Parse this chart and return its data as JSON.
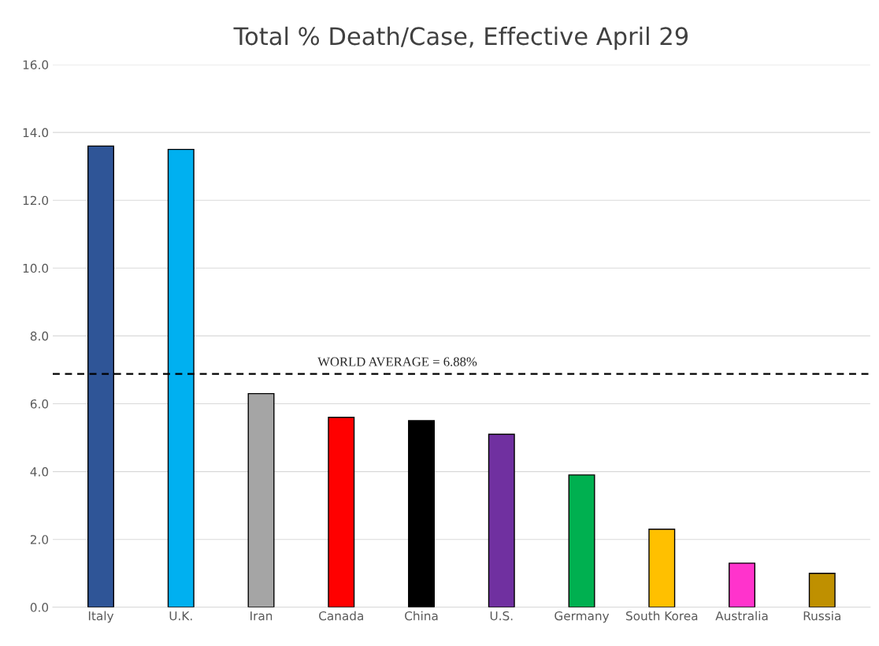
{
  "chart_data": {
    "type": "bar",
    "title": "Total % Death/Case, Effective April 29",
    "categories": [
      "Italy",
      "U.K.",
      "Iran",
      "Canada",
      "China",
      "U.S.",
      "Germany",
      "South Korea",
      "Australia",
      "Russia"
    ],
    "values": [
      13.6,
      13.5,
      6.3,
      5.6,
      5.5,
      5.1,
      3.9,
      2.3,
      1.3,
      1.0
    ],
    "colors": [
      "#2f5597",
      "#00b0f0",
      "#a5a5a5",
      "#ff0000",
      "#000000",
      "#7030a0",
      "#00b050",
      "#ffc000",
      "#ff33cc",
      "#bf9000"
    ],
    "ylim": [
      0,
      16
    ],
    "yticks": [
      {
        "value": 0,
        "label": "0.0"
      },
      {
        "value": 2,
        "label": "2.0"
      },
      {
        "value": 4,
        "label": "4.0"
      },
      {
        "value": 6,
        "label": "6.0"
      },
      {
        "value": 8,
        "label": "8.0"
      },
      {
        "value": 10,
        "label": "10.0"
      },
      {
        "value": 12,
        "label": "12.0"
      },
      {
        "value": 14,
        "label": "14.0"
      },
      {
        "value": 16,
        "label": "16.0"
      }
    ],
    "ref_lines": [
      {
        "axis": "y",
        "value": 6.88,
        "label": "WORLD AVERAGE = 6.88%",
        "color": "#000000",
        "line_style": "dashed"
      }
    ],
    "grid": "y",
    "legend": false
  }
}
